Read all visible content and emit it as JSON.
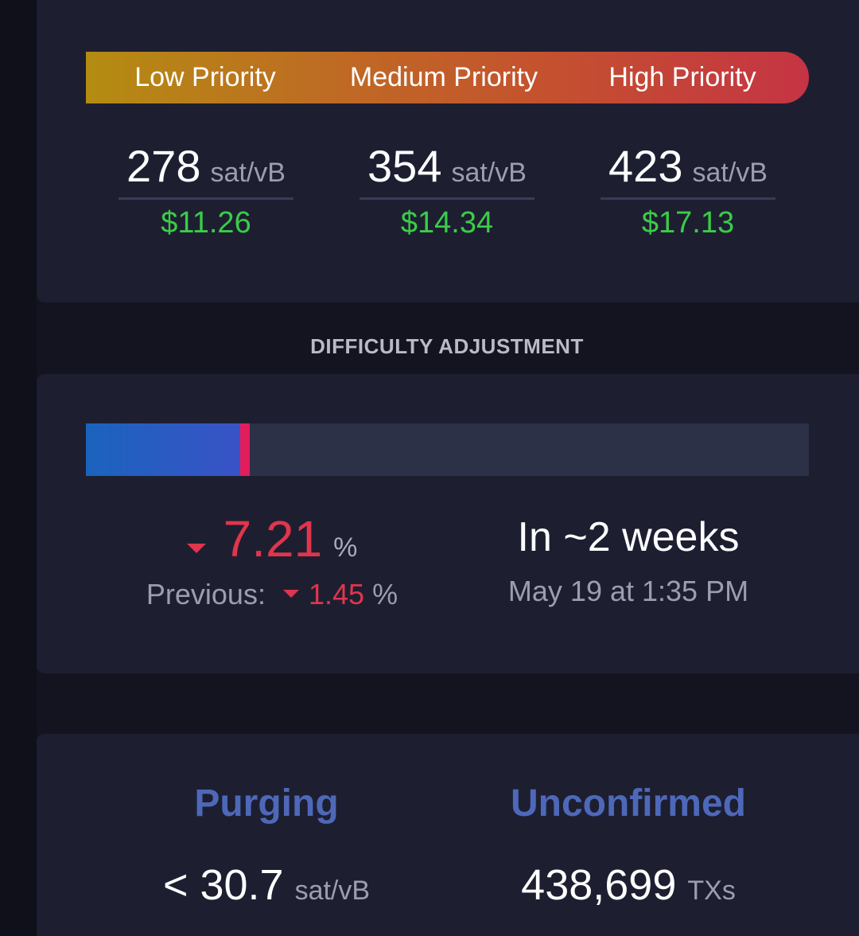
{
  "fees": {
    "priorities": [
      {
        "label": "Low Priority",
        "value": "278",
        "unit": "sat/vB",
        "usd": "$11.26"
      },
      {
        "label": "Medium Priority",
        "value": "354",
        "unit": "sat/vB",
        "usd": "$14.34"
      },
      {
        "label": "High Priority",
        "value": "423",
        "unit": "sat/vB",
        "usd": "$17.13"
      }
    ],
    "gradient_colors": [
      "#b48c12",
      "#bf6a24",
      "#c4502f",
      "#c53444"
    ],
    "usd_color": "#3bcc49"
  },
  "difficulty": {
    "title": "DIFFICULTY ADJUSTMENT",
    "progress_fraction": 0.22,
    "change_value": "7.21",
    "change_unit": "%",
    "change_direction": "down",
    "previous_label": "Previous:",
    "previous_value": "1.45",
    "previous_unit": "%",
    "eta": "In ~2 weeks",
    "eta_date": "May 19 at 1:35 PM",
    "colors": {
      "negative": "#e0354d",
      "fill": "#3a52c6",
      "marker": "#e11d5b"
    }
  },
  "mempool": {
    "purging": {
      "title": "Purging",
      "value": "< 30.7",
      "unit": "sat/vB"
    },
    "unconfirmed": {
      "title": "Unconfirmed",
      "value": "438,699",
      "unit": "TXs"
    },
    "title_color": "#4e68b9"
  }
}
